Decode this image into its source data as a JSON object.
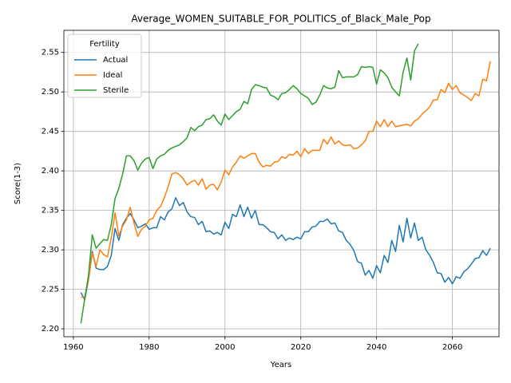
{
  "chart_data": {
    "type": "line",
    "title": "Average_WOMEN_SUITABLE_FOR_POLITICS_of_Black_Male_Pop",
    "x_label": "Years",
    "y_label": "Score(1-3)",
    "legend_title": "Fertility",
    "legend": "upper left",
    "grid": true,
    "x": [
      1962,
      1963,
      1964,
      1965,
      1966,
      1967,
      1968,
      1969,
      1970,
      1971,
      1972,
      1973,
      1974,
      1975,
      1976,
      1977,
      1978,
      1979,
      1980,
      1981,
      1982,
      1983,
      1984,
      1985,
      1986,
      1987,
      1988,
      1989,
      1990,
      1991,
      1992,
      1993,
      1994,
      1995,
      1996,
      1997,
      1998,
      1999,
      2000,
      2001,
      2002,
      2003,
      2004,
      2005,
      2006,
      2007,
      2008,
      2009,
      2010,
      2011,
      2012,
      2013,
      2014,
      2015,
      2016,
      2017,
      2018,
      2019,
      2020,
      2021,
      2022,
      2023,
      2024,
      2025,
      2026,
      2027,
      2028,
      2029,
      2030,
      2031,
      2032,
      2033,
      2034,
      2035,
      2036,
      2037,
      2038,
      2039,
      2040,
      2041,
      2042,
      2043,
      2044,
      2045,
      2046,
      2047,
      2048,
      2049,
      2050,
      2051,
      2052,
      2053,
      2054,
      2055,
      2056,
      2057,
      2058,
      2059,
      2060,
      2061,
      2062,
      2063,
      2064,
      2065,
      2066,
      2067,
      2068,
      2069,
      2070
    ],
    "series": [
      {
        "name": "Actual",
        "color": "#1f77b4",
        "values": [
          2.246,
          2.237,
          2.262,
          2.298,
          2.277,
          2.275,
          2.275,
          2.279,
          2.293,
          2.327,
          2.312,
          2.332,
          2.34,
          2.346,
          2.338,
          2.328,
          2.33,
          2.333,
          2.326,
          2.328,
          2.328,
          2.342,
          2.338,
          2.348,
          2.352,
          2.366,
          2.356,
          2.36,
          2.348,
          2.342,
          2.341,
          2.332,
          2.336,
          2.323,
          2.324,
          2.32,
          2.322,
          2.319,
          2.335,
          2.327,
          2.345,
          2.342,
          2.357,
          2.342,
          2.354,
          2.34,
          2.35,
          2.332,
          2.332,
          2.328,
          2.323,
          2.322,
          2.314,
          2.319,
          2.312,
          2.315,
          2.313,
          2.316,
          2.314,
          2.323,
          2.323,
          2.329,
          2.33,
          2.336,
          2.336,
          2.339,
          2.333,
          2.334,
          2.324,
          2.322,
          2.312,
          2.307,
          2.299,
          2.285,
          2.283,
          2.268,
          2.274,
          2.264,
          2.28,
          2.271,
          2.293,
          2.284,
          2.312,
          2.298,
          2.331,
          2.31,
          2.34,
          2.315,
          2.334,
          2.312,
          2.316,
          2.3,
          2.293,
          2.284,
          2.271,
          2.27,
          2.259,
          2.265,
          2.257,
          2.266,
          2.264,
          2.272,
          2.276,
          2.282,
          2.289,
          2.29,
          2.299,
          2.293,
          2.302
        ]
      },
      {
        "name": "Ideal",
        "color": "#ff7f0e",
        "values": [
          2.24,
          2.24,
          2.262,
          2.296,
          2.279,
          2.3,
          2.294,
          2.291,
          2.315,
          2.347,
          2.318,
          2.33,
          2.338,
          2.354,
          2.334,
          2.317,
          2.326,
          2.33,
          2.338,
          2.34,
          2.35,
          2.355,
          2.366,
          2.38,
          2.396,
          2.398,
          2.395,
          2.39,
          2.382,
          2.386,
          2.388,
          2.382,
          2.39,
          2.377,
          2.382,
          2.383,
          2.376,
          2.386,
          2.401,
          2.395,
          2.405,
          2.411,
          2.419,
          2.416,
          2.419,
          2.422,
          2.422,
          2.411,
          2.405,
          2.407,
          2.406,
          2.411,
          2.412,
          2.418,
          2.416,
          2.421,
          2.42,
          2.425,
          2.418,
          2.428,
          2.422,
          2.426,
          2.426,
          2.426,
          2.44,
          2.434,
          2.443,
          2.434,
          2.438,
          2.433,
          2.432,
          2.433,
          2.428,
          2.429,
          2.433,
          2.438,
          2.45,
          2.45,
          2.463,
          2.456,
          2.465,
          2.456,
          2.463,
          2.456,
          2.457,
          2.458,
          2.459,
          2.457,
          2.463,
          2.466,
          2.472,
          2.476,
          2.481,
          2.49,
          2.49,
          2.503,
          2.499,
          2.511,
          2.503,
          2.508,
          2.499,
          2.496,
          2.493,
          2.489,
          2.498,
          2.495,
          2.516,
          2.514,
          2.539
        ]
      },
      {
        "name": "Sterile",
        "color": "#2ca02c",
        "values": [
          2.207,
          2.238,
          2.268,
          2.319,
          2.302,
          2.308,
          2.313,
          2.312,
          2.332,
          2.365,
          2.378,
          2.396,
          2.419,
          2.419,
          2.413,
          2.401,
          2.41,
          2.415,
          2.417,
          2.403,
          2.415,
          2.419,
          2.421,
          2.426,
          2.429,
          2.431,
          2.433,
          2.437,
          2.442,
          2.455,
          2.451,
          2.456,
          2.458,
          2.465,
          2.466,
          2.471,
          2.463,
          2.458,
          2.472,
          2.465,
          2.47,
          2.475,
          2.478,
          2.488,
          2.485,
          2.503,
          2.509,
          2.508,
          2.506,
          2.505,
          2.496,
          2.494,
          2.49,
          2.498,
          2.499,
          2.503,
          2.508,
          2.504,
          2.498,
          2.495,
          2.492,
          2.484,
          2.487,
          2.496,
          2.508,
          2.505,
          2.504,
          2.506,
          2.527,
          2.518,
          2.519,
          2.519,
          2.519,
          2.522,
          2.532,
          2.531,
          2.532,
          2.531,
          2.51,
          2.528,
          2.524,
          2.518,
          2.506,
          2.5,
          2.495,
          2.525,
          2.543,
          2.515,
          2.552,
          2.561,
          null,
          null,
          null,
          null,
          null,
          null,
          null,
          null,
          null,
          null,
          null,
          null,
          null,
          null,
          null,
          null,
          null,
          null,
          null
        ]
      }
    ],
    "xlim": [
      1957.5,
      2072.3
    ],
    "xticks": [
      1960,
      1980,
      2000,
      2020,
      2040,
      2060
    ],
    "ylim": [
      2.19,
      2.578
    ],
    "yticks": [
      {
        "value": 2.2,
        "label": "2.20"
      },
      2.25,
      {
        "value": 2.3,
        "label": "2.30"
      },
      2.35,
      {
        "value": 2.4,
        "label": "2.40"
      },
      2.45,
      {
        "value": 2.5,
        "label": "2.50"
      },
      2.55
    ]
  }
}
